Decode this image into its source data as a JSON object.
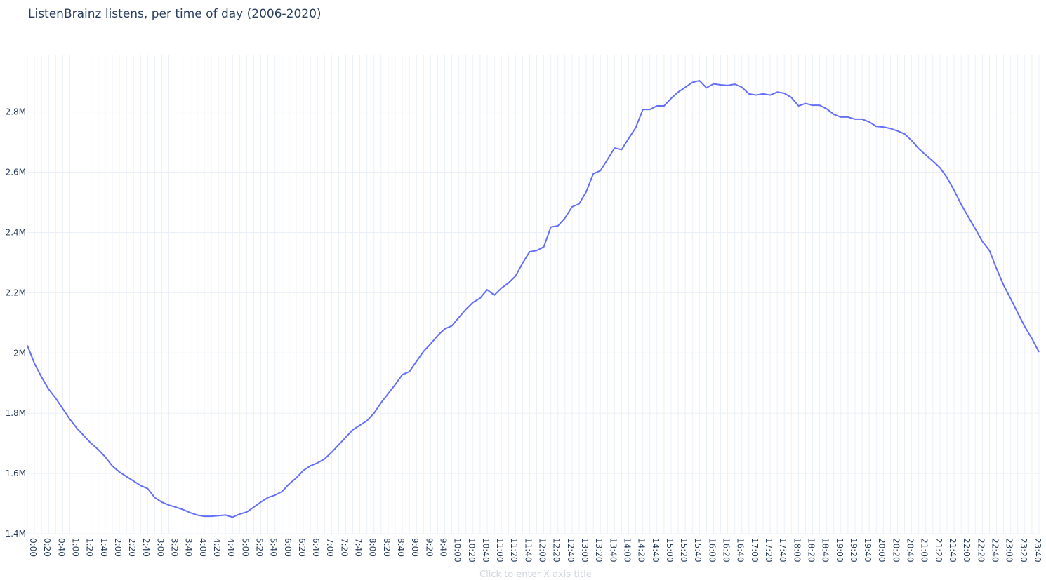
{
  "chart_data": {
    "type": "line",
    "title": "ListenBrainz listens, per time of day (2006-2020)",
    "xlabel_placeholder": "Click to enter X axis title",
    "ylim": [
      1400000,
      2990000
    ],
    "grid": true,
    "series": [
      {
        "color": "#636efa",
        "x": [
          "0:00",
          "0:10",
          "0:20",
          "0:30",
          "0:40",
          "0:50",
          "1:00",
          "1:10",
          "1:20",
          "1:30",
          "1:40",
          "1:50",
          "2:00",
          "2:10",
          "2:20",
          "2:30",
          "2:40",
          "2:50",
          "3:00",
          "3:10",
          "3:20",
          "3:30",
          "3:40",
          "3:50",
          "4:00",
          "4:10",
          "4:20",
          "4:30",
          "4:40",
          "4:50",
          "5:00",
          "5:10",
          "5:20",
          "5:30",
          "5:40",
          "5:50",
          "6:00",
          "6:10",
          "6:20",
          "6:30",
          "6:40",
          "6:50",
          "7:00",
          "7:10",
          "7:20",
          "7:30",
          "7:40",
          "7:50",
          "8:00",
          "8:10",
          "8:20",
          "8:30",
          "8:40",
          "8:50",
          "9:00",
          "9:10",
          "9:20",
          "9:30",
          "9:40",
          "9:50",
          "10:00",
          "10:10",
          "10:20",
          "10:30",
          "10:40",
          "10:50",
          "11:00",
          "11:10",
          "11:20",
          "11:30",
          "11:40",
          "11:50",
          "12:00",
          "12:10",
          "12:20",
          "12:30",
          "12:40",
          "12:50",
          "13:00",
          "13:10",
          "13:20",
          "13:30",
          "13:40",
          "13:50",
          "14:00",
          "14:10",
          "14:20",
          "14:30",
          "14:40",
          "14:50",
          "15:00",
          "15:10",
          "15:20",
          "15:30",
          "15:40",
          "15:50",
          "16:00",
          "16:10",
          "16:20",
          "16:30",
          "16:40",
          "16:50",
          "17:00",
          "17:10",
          "17:20",
          "17:30",
          "17:40",
          "17:50",
          "18:00",
          "18:10",
          "18:20",
          "18:30",
          "18:40",
          "18:50",
          "19:00",
          "19:10",
          "19:20",
          "19:30",
          "19:40",
          "19:50",
          "20:00",
          "20:10",
          "20:20",
          "20:30",
          "20:40",
          "20:50",
          "21:00",
          "21:10",
          "21:20",
          "21:30",
          "21:40",
          "21:50",
          "22:00",
          "22:10",
          "22:20",
          "22:30",
          "22:40",
          "22:50",
          "23:00",
          "23:10",
          "23:20",
          "23:30",
          "23:40",
          "23:50"
        ],
        "values": [
          2025000,
          1965000,
          1920000,
          1880000,
          1850000,
          1815000,
          1780000,
          1750000,
          1725000,
          1700000,
          1680000,
          1655000,
          1625000,
          1605000,
          1590000,
          1575000,
          1560000,
          1550000,
          1520000,
          1505000,
          1495000,
          1488000,
          1480000,
          1470000,
          1462000,
          1458000,
          1458000,
          1460000,
          1462000,
          1455000,
          1465000,
          1472000,
          1488000,
          1505000,
          1520000,
          1528000,
          1540000,
          1565000,
          1585000,
          1610000,
          1625000,
          1635000,
          1648000,
          1670000,
          1695000,
          1720000,
          1745000,
          1760000,
          1775000,
          1800000,
          1835000,
          1865000,
          1895000,
          1928000,
          1938000,
          1972000,
          2005000,
          2030000,
          2058000,
          2080000,
          2090000,
          2118000,
          2145000,
          2168000,
          2182000,
          2210000,
          2192000,
          2215000,
          2232000,
          2255000,
          2298000,
          2336000,
          2340000,
          2352000,
          2418000,
          2422000,
          2448000,
          2485000,
          2495000,
          2535000,
          2595000,
          2605000,
          2642000,
          2680000,
          2675000,
          2712000,
          2748000,
          2808000,
          2808000,
          2820000,
          2820000,
          2845000,
          2866000,
          2882000,
          2898000,
          2904000,
          2880000,
          2893000,
          2890000,
          2888000,
          2892000,
          2882000,
          2860000,
          2856000,
          2860000,
          2856000,
          2866000,
          2862000,
          2848000,
          2820000,
          2828000,
          2822000,
          2822000,
          2810000,
          2792000,
          2783000,
          2783000,
          2776000,
          2776000,
          2767000,
          2752000,
          2750000,
          2745000,
          2737000,
          2727000,
          2705000,
          2678000,
          2657000,
          2637000,
          2615000,
          2582000,
          2540000,
          2493000,
          2452000,
          2412000,
          2370000,
          2340000,
          2280000,
          2225000,
          2180000,
          2133000,
          2087000,
          2048000,
          2003000
        ]
      }
    ],
    "tick_labels": [
      "0:00",
      "0:20",
      "0:40",
      "1:00",
      "1:20",
      "1:40",
      "2:00",
      "2:20",
      "2:40",
      "3:00",
      "3:20",
      "3:40",
      "4:00",
      "4:20",
      "4:40",
      "5:00",
      "5:20",
      "5:40",
      "6:00",
      "6:20",
      "6:40",
      "7:00",
      "7:20",
      "7:40",
      "8:00",
      "8:20",
      "8:40",
      "9:00",
      "9:20",
      "9:40",
      "10:00",
      "10:20",
      "10:40",
      "11:00",
      "11:20",
      "11:40",
      "12:00",
      "12:20",
      "12:40",
      "13:00",
      "13:20",
      "13:40",
      "14:00",
      "14:20",
      "14:40",
      "15:00",
      "15:20",
      "15:40",
      "16:00",
      "16:20",
      "16:40",
      "17:00",
      "17:20",
      "17:40",
      "18:00",
      "18:20",
      "18:40",
      "19:00",
      "19:20",
      "19:40",
      "20:00",
      "20:20",
      "20:40",
      "21:00",
      "21:20",
      "21:40",
      "22:00",
      "22:20",
      "22:40",
      "23:00",
      "23:20",
      "23:40"
    ],
    "y_ticks": [
      {
        "value": 1400000,
        "label": "1.4M"
      },
      {
        "value": 1600000,
        "label": "1.6M"
      },
      {
        "value": 1800000,
        "label": "1.8M"
      },
      {
        "value": 2000000,
        "label": "2M"
      },
      {
        "value": 2200000,
        "label": "2.2M"
      },
      {
        "value": 2400000,
        "label": "2.4M"
      },
      {
        "value": 2600000,
        "label": "2.6M"
      },
      {
        "value": 2800000,
        "label": "2.8M"
      }
    ]
  }
}
